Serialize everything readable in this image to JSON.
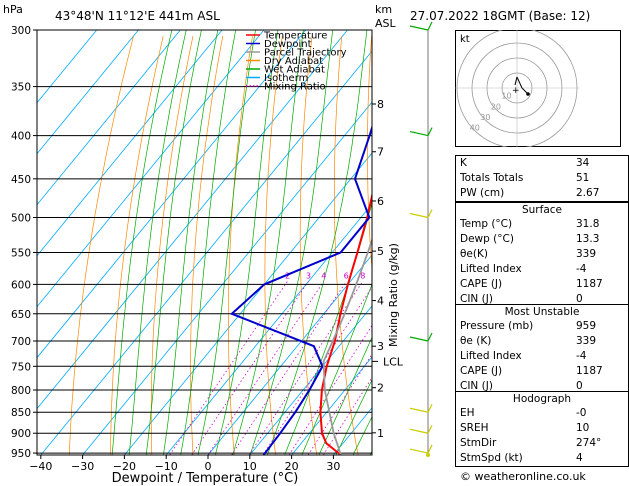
{
  "header": {
    "hpa_label": "hPa",
    "location": "43°48'N  11°12'E  441m  ASL",
    "km_label": "km",
    "asl_label": "ASL",
    "datetime": "27.07.2022  18GMT  (Base: 12)"
  },
  "legend": [
    {
      "label": "Temperature",
      "color": "#ff0000",
      "style": "solid"
    },
    {
      "label": "Dewpoint",
      "color": "#0000cc",
      "style": "solid"
    },
    {
      "label": "Parcel Trajectory",
      "color": "#999999",
      "style": "solid"
    },
    {
      "label": "Dry Adiabat",
      "color": "#ff8800",
      "style": "solid"
    },
    {
      "label": "Wet Adiabat",
      "color": "#00aa00",
      "style": "solid"
    },
    {
      "label": "Isotherm",
      "color": "#00aaff",
      "style": "solid"
    },
    {
      "label": "Mixing Ratio",
      "color": "#cc00cc",
      "style": "dotted"
    }
  ],
  "chart_data": {
    "type": "line",
    "title": "",
    "xlabel": "Dewpoint / Temperature (°C)",
    "ylabel": "hPa",
    "right_axis_label": "Mixing Ratio (g/kg)",
    "x_ticks": [
      "−40",
      "−30",
      "−20",
      "−10",
      "0",
      "10",
      "20",
      "30"
    ],
    "pressure_levels": [
      "300",
      "350",
      "400",
      "450",
      "500",
      "550",
      "600",
      "650",
      "700",
      "750",
      "800",
      "850",
      "900",
      "950"
    ],
    "height_km_labels": [
      {
        "km": "8",
        "p": 367
      },
      {
        "km": "7",
        "p": 418
      },
      {
        "km": "6",
        "p": 478
      },
      {
        "km": "5",
        "p": 548
      },
      {
        "km": "4",
        "p": 627
      },
      {
        "km": "3",
        "p": 710
      },
      {
        "km": "2",
        "p": 795
      },
      {
        "km": "1",
        "p": 899
      }
    ],
    "lcl_label": "LCL",
    "lcl_pressure": 740,
    "mixing_ratio_labels": [
      "2",
      "3",
      "4",
      "6",
      "8",
      "10",
      "15",
      "20",
      "25"
    ],
    "mixing_ratio_values": [
      2,
      3,
      4,
      6,
      8,
      10,
      15,
      20,
      25
    ],
    "mixing_ratio_label_pressure": 590,
    "series": [
      {
        "name": "Temperature",
        "color": "#ff0000",
        "points": [
          [
            955,
            31.8
          ],
          [
            925,
            26
          ],
          [
            900,
            23
          ],
          [
            850,
            18.5
          ],
          [
            800,
            14.5
          ],
          [
            750,
            11
          ],
          [
            700,
            8
          ],
          [
            650,
            4
          ],
          [
            600,
            0
          ],
          [
            550,
            -4
          ],
          [
            500,
            -8.5
          ],
          [
            450,
            -14
          ],
          [
            400,
            -21
          ],
          [
            350,
            -29
          ],
          [
            300,
            -38
          ]
        ]
      },
      {
        "name": "Dewpoint",
        "color": "#0000cc",
        "points": [
          [
            955,
            13.3
          ],
          [
            900,
            13
          ],
          [
            850,
            12.5
          ],
          [
            800,
            11.5
          ],
          [
            750,
            10
          ],
          [
            710,
            4
          ],
          [
            650,
            -22
          ],
          [
            600,
            -20
          ],
          [
            550,
            -8
          ],
          [
            500,
            -8
          ],
          [
            450,
            -19
          ],
          [
            400,
            -24
          ],
          [
            350,
            -30
          ],
          [
            300,
            -40
          ]
        ]
      },
      {
        "name": "Parcel Trajectory",
        "color": "#999999",
        "points": [
          [
            955,
            31.8
          ],
          [
            900,
            25.8
          ],
          [
            800,
            15.2
          ],
          [
            740,
            9.3
          ],
          [
            700,
            7.5
          ],
          [
            650,
            5
          ],
          [
            600,
            2
          ],
          [
            550,
            -1.5
          ],
          [
            500,
            -5.5
          ],
          [
            450,
            -10
          ],
          [
            400,
            -15.5
          ],
          [
            350,
            -22
          ],
          [
            300,
            -30
          ]
        ]
      }
    ],
    "wind_barbs": [
      {
        "p": 300,
        "color": "#00aa00"
      },
      {
        "p": 400,
        "color": "#00aa00"
      },
      {
        "p": 500,
        "color": "#cccc00"
      },
      {
        "p": 700,
        "color": "#00aa00"
      },
      {
        "p": 850,
        "color": "#cccc00"
      },
      {
        "p": 900,
        "color": "#cccc00"
      },
      {
        "p": 950,
        "color": "#cccc00"
      }
    ]
  },
  "hodograph": {
    "unit": "kt",
    "ring_labels": [
      "10",
      "20",
      "30",
      "40"
    ]
  },
  "indices": [
    {
      "label": "K",
      "value": "34"
    },
    {
      "label": "Totals Totals",
      "value": "51"
    },
    {
      "label": "PW (cm)",
      "value": "2.67"
    }
  ],
  "surface": {
    "title": "Surface",
    "rows": [
      {
        "label": "Temp (°C)",
        "value": "31.8"
      },
      {
        "label": "Dewp (°C)",
        "value": "13.3"
      },
      {
        "label": "θe(K)",
        "value": "339"
      },
      {
        "label": "Lifted Index",
        "value": "-4"
      },
      {
        "label": "CAPE (J)",
        "value": "1187"
      },
      {
        "label": "CIN (J)",
        "value": "0"
      }
    ]
  },
  "most_unstable": {
    "title": "Most Unstable",
    "rows": [
      {
        "label": "Pressure (mb)",
        "value": "959"
      },
      {
        "label": "θe (K)",
        "value": "339"
      },
      {
        "label": "Lifted Index",
        "value": "-4"
      },
      {
        "label": "CAPE (J)",
        "value": "1187"
      },
      {
        "label": "CIN (J)",
        "value": "0"
      }
    ]
  },
  "hodograph_table": {
    "title": "Hodograph",
    "rows": [
      {
        "label": "EH",
        "value": "-0"
      },
      {
        "label": "SREH",
        "value": "10"
      },
      {
        "label": "StmDir",
        "value": "274°"
      },
      {
        "label": "StmSpd (kt)",
        "value": "4"
      }
    ]
  },
  "footer": {
    "copyright": "© weatheronline.co.uk"
  }
}
